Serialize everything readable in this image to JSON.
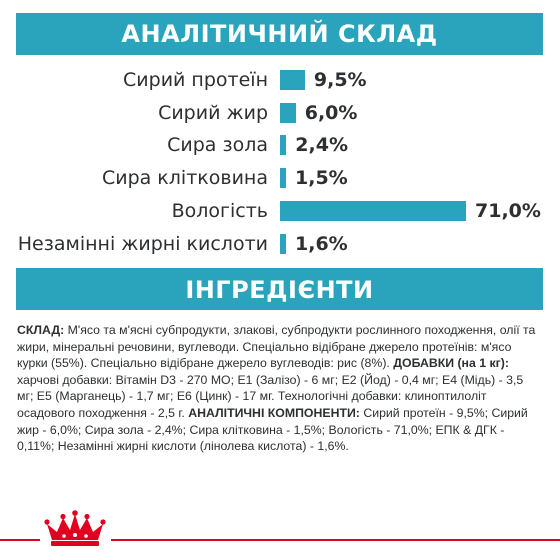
{
  "analysis": {
    "title": "АНАЛІТИЧНИЙ СКЛАД",
    "bar_color": "#2aa4bd",
    "rows": [
      {
        "label": "Сирий протеїн",
        "value": "9,5%",
        "percent": 9.5
      },
      {
        "label": "Сирий жир",
        "value": "6,0%",
        "percent": 6.0
      },
      {
        "label": "Сира зола",
        "value": "2,4%",
        "percent": 2.4
      },
      {
        "label": "Сира клітковина",
        "value": "1,5%",
        "percent": 1.5
      },
      {
        "label": "Вологість",
        "value": "71,0%",
        "percent": 71.0
      },
      {
        "label": "Незамінні жирні кислоти",
        "value": "1,6%",
        "percent": 1.6
      }
    ]
  },
  "ingredients": {
    "title": "ІНГРЕДІЄНТИ",
    "composition_label": "СКЛАД:",
    "composition_text": " М'ясо та м'ясні субпродукти, злакові, субпродукти рослинного походження, олії та жири, мінеральні речовини, вуглеводи. Спеціально відібране джерело протеїнів: м'ясо курки (55%). Спеціально відібране джерело вуглеводів: рис (8%). ",
    "additives_label": "ДОБАВКИ (на 1 кг):",
    "additives_text": " харчові добавки: Вітамін D3 - 270 МО; Е1 (Залізо) - 6 мг; Е2 (Йод) - 0,4 мг; Е4 (Мідь) - 3,5 мг; Е5 (Марганець) - 1,7 мг; Е6 (Цинк) - 17 мг. Технологічні добавки: клиноптилоліт осадового походження - 2,5 г. ",
    "analytical_label": "АНАЛІТИЧНІ КОМПОНЕНТИ:",
    "analytical_text": " Сирий протеїн - 9,5%; Сирий жир - 6,0%; Сира зола - 2,4%; Сира клітковина - 1,5%; Вологість - 71,0%; ЕПК & ДГК - 0,11%; Незамінні жирні кислоти (лінолева кислота) - 1,6%."
  },
  "footer": {
    "logo": "royal-canin-crown-icon",
    "line_color": "#e1001f"
  }
}
